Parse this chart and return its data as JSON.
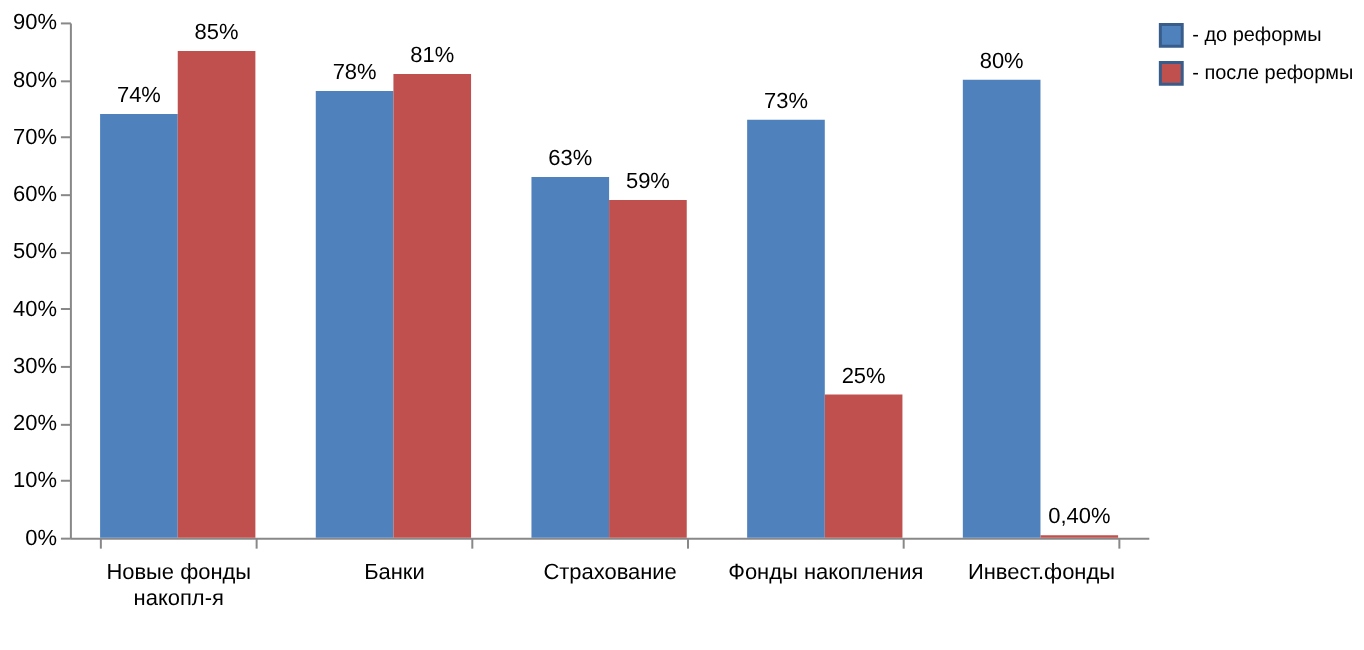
{
  "chart_data": {
    "type": "bar",
    "categories": [
      "Новые фонды\nнакопл-я",
      "Банки",
      "Страхование",
      "Фонды накопления",
      "Инвест.фонды"
    ],
    "series": [
      {
        "name": "- до реформы",
        "color": "#4f81bd",
        "values": [
          74,
          78,
          63,
          73,
          80
        ],
        "value_labels": [
          "74%",
          "78%",
          "63%",
          "73%",
          "80%"
        ]
      },
      {
        "name": "- после реформы",
        "color": "#c0504d",
        "values": [
          85,
          81,
          59,
          25,
          0.4
        ],
        "value_labels": [
          "85%",
          "81%",
          "59%",
          "25%",
          "0,40%"
        ]
      }
    ],
    "ylim": [
      0,
      90
    ],
    "yticks": [
      {
        "value": 0,
        "label": "0%"
      },
      {
        "value": 10,
        "label": "10%"
      },
      {
        "value": 20,
        "label": "20%"
      },
      {
        "value": 30,
        "label": "30%"
      },
      {
        "value": 40,
        "label": "40%"
      },
      {
        "value": 50,
        "label": "50%"
      },
      {
        "value": 60,
        "label": "60%"
      },
      {
        "value": 70,
        "label": "70%"
      },
      {
        "value": 80,
        "label": "80%"
      },
      {
        "value": 90,
        "label": "90%"
      }
    ],
    "grid": false,
    "legend": "top right"
  }
}
